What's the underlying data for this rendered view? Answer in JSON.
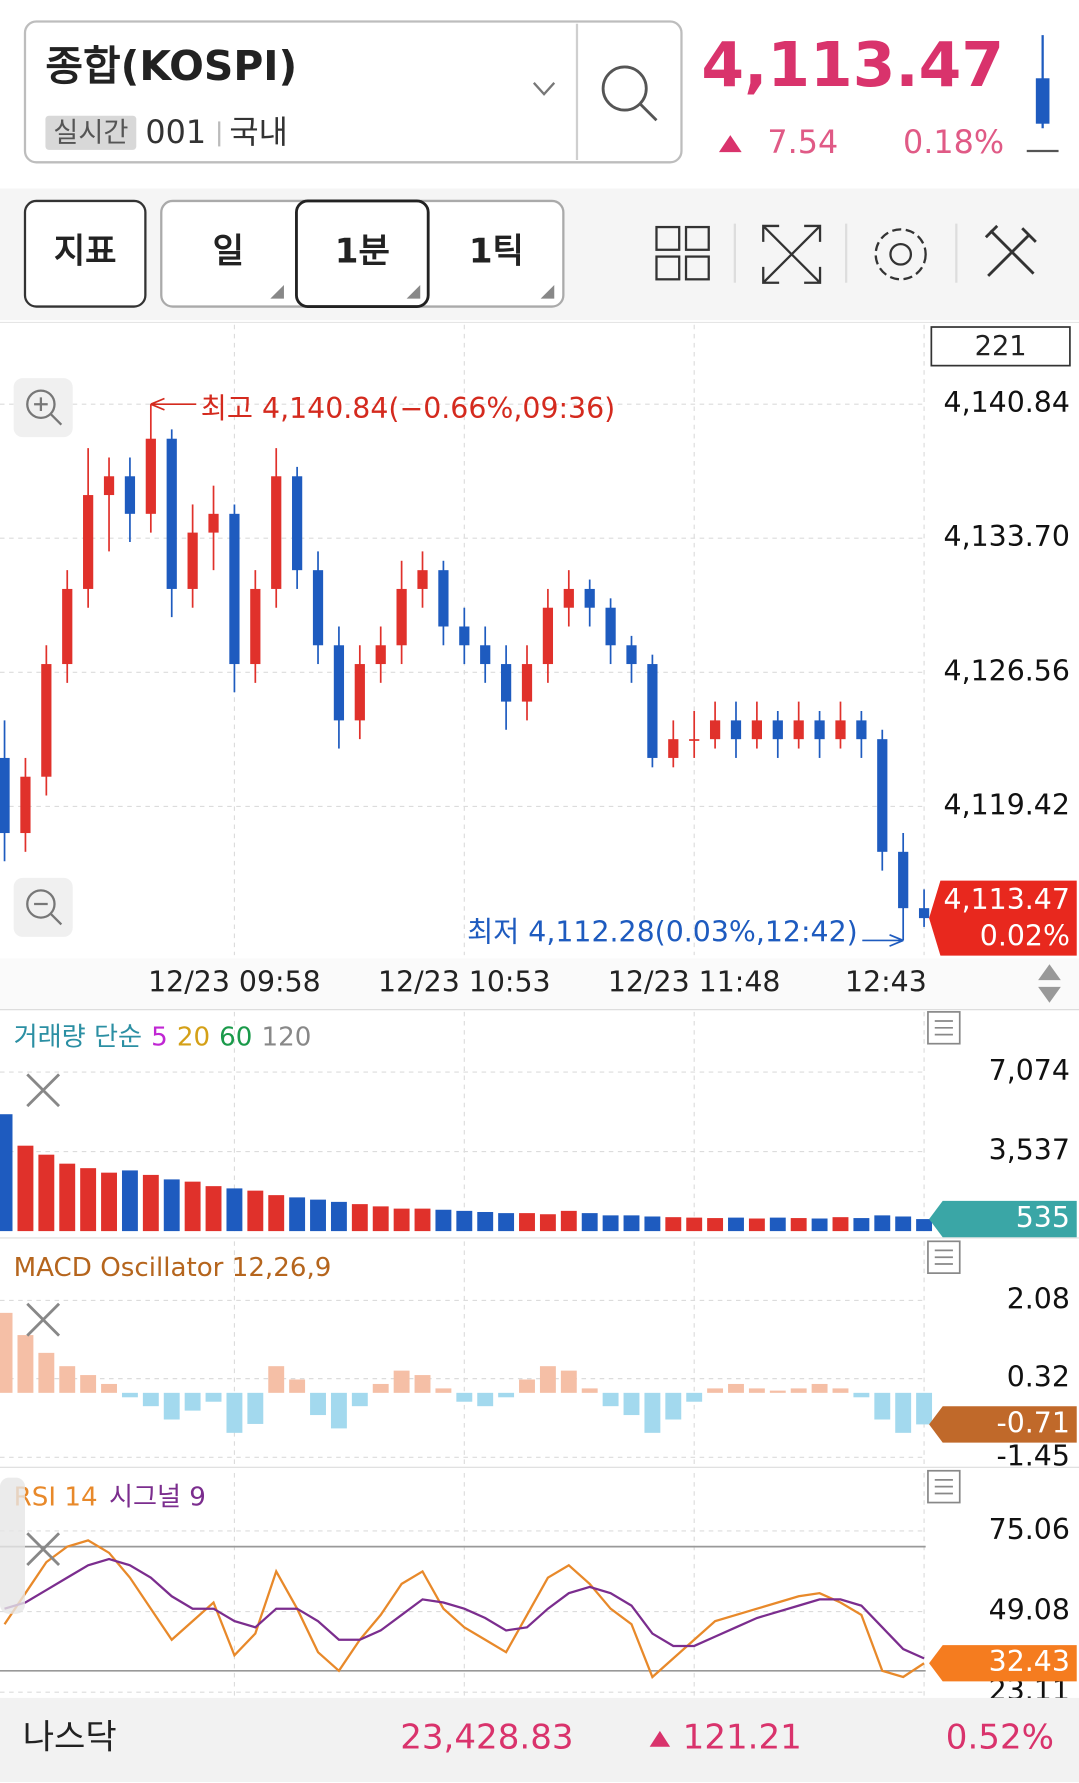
{
  "header": {
    "title": "종합(KOSPI)",
    "realtime": "실시간",
    "code": "001",
    "market": "국내",
    "price": "4,113.47",
    "change": "7.54",
    "rate": "0.18%"
  },
  "toolbar": {
    "indicator": "지표",
    "periods": [
      "일",
      "1분",
      "1틱"
    ]
  },
  "chart_data": [
    {
      "type": "candlestick",
      "count": 221,
      "x": [
        "12/23 09:03",
        "12/23 09:08",
        "12/23 09:13",
        "12/23 09:18",
        "12/23 09:23",
        "12/23 09:28",
        "12/23 09:33",
        "12/23 09:38",
        "12/23 09:43",
        "12/23 09:48",
        "12/23 09:53",
        "12/23 09:58",
        "12/23 10:03",
        "12/23 10:08",
        "12/23 10:13",
        "12/23 10:18",
        "12/23 10:23",
        "12/23 10:28",
        "12/23 10:33",
        "12/23 10:38",
        "12/23 10:43",
        "12/23 10:48",
        "12/23 10:53",
        "12/23 10:58",
        "12/23 11:03",
        "12/23 11:08",
        "12/23 11:13",
        "12/23 11:18",
        "12/23 11:23",
        "12/23 11:28",
        "12/23 11:33",
        "12/23 11:38",
        "12/23 11:43",
        "12/23 11:48",
        "12/23 11:53",
        "12/23 11:58",
        "12/23 12:03",
        "12/23 12:08",
        "12/23 12:13",
        "12/23 12:18",
        "12/23 12:23",
        "12/23 12:28",
        "12/23 12:33",
        "12/23 12:38",
        "12/23 12:43"
      ],
      "open": [
        4122,
        4118,
        4121,
        4127,
        4131,
        4136,
        4137,
        4135,
        4139,
        4131,
        4134,
        4135,
        4127,
        4131,
        4137,
        4132,
        4128,
        4124,
        4127,
        4128,
        4131,
        4132,
        4129,
        4128,
        4127,
        4125,
        4127,
        4130,
        4131,
        4130,
        4128,
        4127,
        4122,
        4123,
        4123,
        4124,
        4123,
        4124,
        4123,
        4124,
        4123,
        4124,
        4123,
        4117,
        4114
      ],
      "high": [
        4124,
        4122,
        4128,
        4132,
        4138.5,
        4138,
        4138,
        4140.84,
        4139.5,
        4135.5,
        4136.5,
        4135.5,
        4132,
        4138.5,
        4137.5,
        4133,
        4129,
        4128,
        4129,
        4132.5,
        4133,
        4132.5,
        4130,
        4129,
        4128,
        4128,
        4131,
        4132,
        4131.5,
        4130.5,
        4128.5,
        4127.5,
        4124,
        4124.5,
        4125,
        4125,
        4125,
        4124.5,
        4125,
        4124.5,
        4125,
        4124.5,
        4123.5,
        4118,
        4115
      ],
      "low": [
        4116.5,
        4117,
        4120,
        4126,
        4130,
        4133,
        4133.5,
        4134,
        4129.5,
        4130,
        4132,
        4125.5,
        4126,
        4130,
        4131,
        4127,
        4122.5,
        4123,
        4126,
        4127,
        4130,
        4128,
        4127,
        4126,
        4123.5,
        4124,
        4126,
        4129,
        4129,
        4127,
        4126,
        4121.5,
        4121.5,
        4122,
        4122.5,
        4122,
        4122.5,
        4122,
        4122.5,
        4122,
        4122.5,
        4122,
        4116,
        4112.28,
        4113
      ],
      "close": [
        4118,
        4121,
        4127,
        4131,
        4136,
        4137,
        4135,
        4139,
        4131,
        4134,
        4135,
        4127,
        4131,
        4137,
        4132,
        4128,
        4124,
        4127,
        4128,
        4131,
        4132,
        4129,
        4128,
        4127,
        4125,
        4127,
        4130,
        4131,
        4130,
        4128,
        4127,
        4122,
        4123,
        4123,
        4124,
        4123,
        4124,
        4123,
        4124,
        4123,
        4124,
        4123,
        4117,
        4114,
        4113.47
      ],
      "up_color": "#e0312b",
      "down_color": "#1e5bbf",
      "ylim": [
        4111.5,
        4145.07
      ],
      "yticks": [
        {
          "value": 4140.84,
          "label": "4,140.84"
        },
        {
          "value": 4133.7,
          "label": "4,133.70"
        },
        {
          "value": 4126.56,
          "label": "4,126.56"
        },
        {
          "value": 4119.42,
          "label": "4,119.42"
        }
      ],
      "xticks": [
        "12/23 09:58",
        "12/23 10:53",
        "12/23 11:48",
        {
          "value": "12/23 12:43",
          "label": "12:43"
        }
      ],
      "high_annotation": "최고 4,140.84(−0.66%,09:36)",
      "low_annotation": "최저 4,112.28(0.03%,12:42)",
      "last_tag": "4,113.47",
      "last_tag_change": "0.02%",
      "grid": true
    },
    {
      "type": "volume",
      "title": "거래량 단순",
      "ma_labels": [
        {
          "text": "5",
          "color": "#c026d3"
        },
        {
          "text": "20",
          "color": "#d4a017"
        },
        {
          "text": "60",
          "color": "#1a9a4a"
        },
        {
          "text": "120",
          "color": "#888888"
        }
      ],
      "values": [
        5200,
        3800,
        3400,
        3000,
        2800,
        2600,
        2700,
        2500,
        2300,
        2200,
        2000,
        1900,
        1800,
        1600,
        1500,
        1400,
        1300,
        1200,
        1100,
        1000,
        1000,
        950,
        900,
        850,
        800,
        800,
        750,
        900,
        800,
        700,
        700,
        650,
        620,
        600,
        580,
        600,
        560,
        600,
        580,
        560,
        620,
        580,
        700,
        650,
        535
      ],
      "ylim": [
        0,
        9752
      ],
      "yticks": [
        {
          "value": 7074,
          "label": "7,074"
        },
        {
          "value": 3537,
          "label": "3,537"
        }
      ],
      "tag_color": "#3aa6a6",
      "grid": true
    },
    {
      "type": "oscillator",
      "title": "MACD Oscillator 12,26,9",
      "title_color": "#b5651d",
      "values": [
        1.8,
        1.3,
        0.9,
        0.6,
        0.4,
        0.2,
        -0.1,
        -0.3,
        -0.6,
        -0.4,
        -0.2,
        -0.9,
        -0.7,
        0.6,
        0.3,
        -0.5,
        -0.8,
        -0.3,
        0.2,
        0.5,
        0.4,
        0.1,
        -0.2,
        -0.3,
        -0.1,
        0.3,
        0.6,
        0.5,
        0.1,
        -0.3,
        -0.5,
        -0.9,
        -0.6,
        -0.2,
        0.1,
        0.2,
        0.1,
        0.05,
        0.1,
        0.2,
        0.1,
        -0.1,
        -0.6,
        -0.9,
        -0.71
      ],
      "pos_color": "#f5bfa6",
      "neg_color": "#a3d9ee",
      "ylim": [
        -1.6,
        3.41
      ],
      "yticks": [
        2.08,
        0.32,
        -1.45
      ],
      "tag_color": "#c0692a",
      "grid": true
    },
    {
      "type": "line",
      "series": [
        {
          "name": "RSI 14",
          "color": "#e8892a",
          "values": [
            45,
            55,
            65,
            70,
            72,
            68,
            60,
            50,
            40,
            46,
            52,
            35,
            42,
            62,
            50,
            36,
            30,
            40,
            48,
            58,
            62,
            50,
            44,
            40,
            36,
            48,
            60,
            64,
            58,
            50,
            45,
            28,
            34,
            40,
            46,
            48,
            50,
            52,
            54,
            55,
            52,
            48,
            30,
            28,
            32.43
          ]
        },
        {
          "name": "시그널 9",
          "color": "#7b2d8e",
          "values": [
            50,
            52,
            56,
            60,
            64,
            66,
            64,
            60,
            54,
            50,
            50,
            46,
            44,
            50,
            50,
            46,
            40,
            40,
            43,
            48,
            53,
            52,
            50,
            47,
            43,
            44,
            50,
            55,
            57,
            55,
            51,
            42,
            38,
            38,
            41,
            44,
            47,
            49,
            51,
            53,
            53,
            51,
            44,
            37,
            34
          ]
        }
      ],
      "levels": [
        70,
        30
      ],
      "ylim": [
        22,
        93.7
      ],
      "yticks": [
        75.06,
        49.08,
        23.11
      ],
      "tag_color": "#f57c1f",
      "grid": true
    }
  ],
  "footer": {
    "name": "나스닥",
    "value": "23,428.83",
    "change": "121.21",
    "rate": "0.52%"
  }
}
